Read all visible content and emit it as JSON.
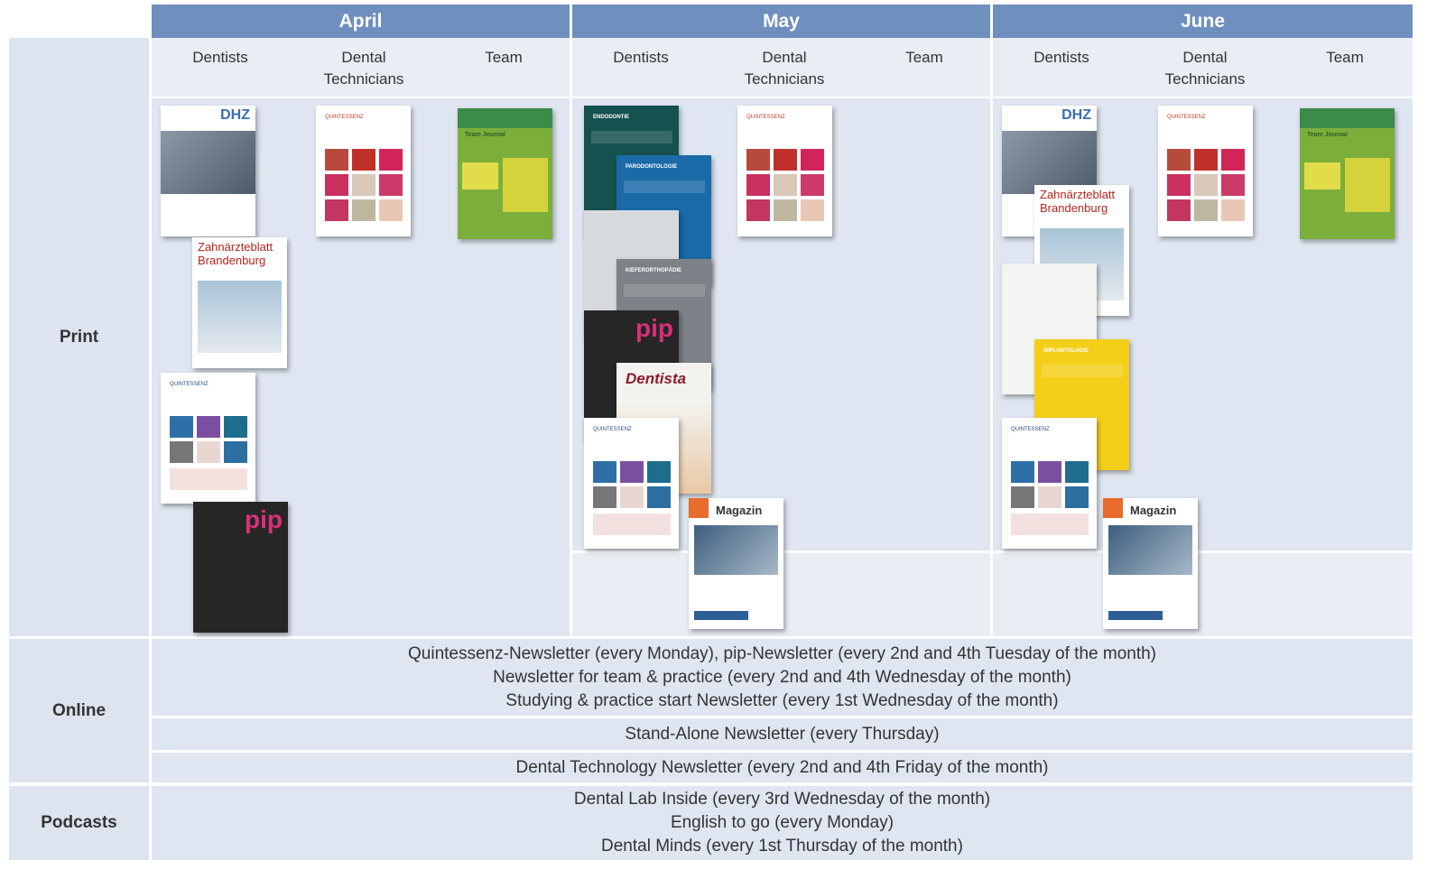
{
  "header": {
    "months": [
      "April",
      "May",
      "June"
    ],
    "audiences": [
      "Dentists",
      "Dental\nTechnicians",
      "Team"
    ]
  },
  "rows": {
    "print": "Print",
    "online": "Online",
    "podcasts": "Podcasts"
  },
  "online": [
    [
      "Quintessenz-Newsletter (every Monday), pip-Newsletter (every 2nd and 4th Tuesday of the month)",
      "Newsletter for team & practice (every 2nd and 4th Wednesday of the month)",
      "Studying & practice start Newsletter (every 1st Wednesday of the month)"
    ],
    [
      "Stand-Alone Newsletter (every Thursday)"
    ],
    [
      "Dental Technology Newsletter (every 2nd and 4th Friday of the month)"
    ]
  ],
  "podcasts": [
    "Dental Lab Inside (every 3rd Wednesday of the month)",
    "English to go (every Monday)",
    "Dental Minds (every 1st Thursday of the month)"
  ],
  "covers": {
    "dhz": "DHZ",
    "zb": "Zahnärzteblatt\nBrandenburg",
    "quint": "QUINTESSENZ",
    "team": "Team Journal",
    "endo": "ENDODONTIE",
    "paro": "PARODONTOLOGIE",
    "kfo": "KIEFERORTHOPÄDIE",
    "implant": "IMPLANTOLOGIE",
    "pip": "pip",
    "dentista": "Dentista",
    "magazin": "Magazin"
  }
}
